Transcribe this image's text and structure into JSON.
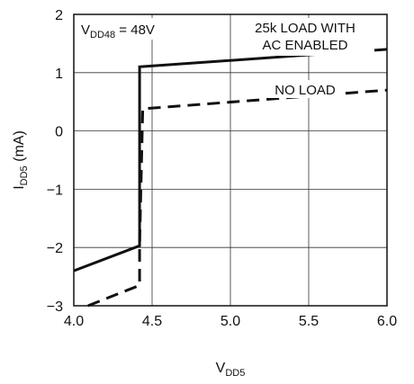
{
  "chart_data": {
    "type": "line",
    "xlabel": {
      "main": "V",
      "sub": "DD5"
    },
    "ylabel": {
      "main": "I",
      "sub": "DD5",
      "suffix": " (mA)"
    },
    "xlim": [
      4.0,
      6.0
    ],
    "ylim": [
      -3,
      2
    ],
    "x_ticks": [
      "4.0",
      "4.5",
      "5.0",
      "5.5",
      "6.0"
    ],
    "y_ticks": [
      "2",
      "1",
      "0",
      "−1",
      "−2",
      "−3"
    ],
    "grid": true,
    "series": [
      {
        "name": "25k LOAD WITH AC ENABLED",
        "style": "solid",
        "x": [
          4.0,
          4.42,
          4.42,
          4.42,
          6.0
        ],
        "y": [
          -2.4,
          -1.97,
          -1.97,
          1.1,
          1.4
        ]
      },
      {
        "name": "NO LOAD",
        "style": "dashed",
        "x": [
          4.09,
          4.42,
          4.42,
          4.44,
          6.0
        ],
        "y": [
          -3.0,
          -2.65,
          -1.97,
          0.38,
          0.7
        ]
      }
    ],
    "annotations": {
      "condition": {
        "main": "V",
        "sub": "DD48",
        "suffix": " = 48V"
      },
      "solid_label_line1": "25k LOAD WITH",
      "solid_label_line2": "AC ENABLED",
      "dashed_label": "NO LOAD"
    }
  }
}
